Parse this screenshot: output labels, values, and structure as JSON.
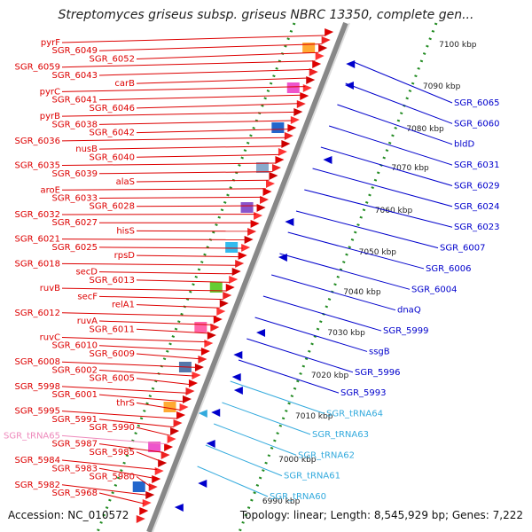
{
  "title": "Streptomyces griseus subsp. griseus NBRC 13350, complete gen...",
  "footer": {
    "accession": "Accession: NC_010572",
    "topology": "Topology: linear; Length: 8,545,929 bp; Genes: 7,222"
  },
  "colors": {
    "forward": "#dd0000",
    "reverse": "#0000cc",
    "trna": "#33aadd",
    "trna_label": "#ee88bb",
    "ruler": "#228b22"
  },
  "axis": {
    "ticks": [
      "7100 kbp",
      "7090 kbp",
      "7080 kbp",
      "7070 kbp",
      "7060 kbp",
      "7050 kbp",
      "7040 kbp",
      "7030 kbp",
      "7020 kbp",
      "7010 kbp",
      "7000 kbp",
      "6990 kbp"
    ]
  },
  "labels_left": [
    "pyrF",
    "SGR_6049",
    "SGR_6052",
    "SGR_6059",
    "SGR_6043",
    "carB",
    "pyrC",
    "SGR_6041",
    "SGR_6046",
    "pyrB",
    "SGR_6038",
    "SGR_6042",
    "SGR_6036",
    "nusB",
    "SGR_6040",
    "SGR_6035",
    "SGR_6039",
    "alaS",
    "aroE",
    "SGR_6033",
    "SGR_6028",
    "SGR_6032",
    "SGR_6027",
    "hisS",
    "SGR_6021",
    "SGR_6025",
    "rpsD",
    "SGR_6018",
    "secD",
    "SGR_6013",
    "ruvB",
    "secF",
    "relA1",
    "SGR_6012",
    "ruvA",
    "SGR_6011",
    "ruvC",
    "SGR_6010",
    "SGR_6009",
    "SGR_6008",
    "SGR_6002",
    "SGR_6005",
    "SGR_5998",
    "SGR_6001",
    "thrS",
    "SGR_5995",
    "SGR_5991",
    "SGR_5990",
    "SGR_tRNA65",
    "SGR_5987",
    "SGR_5985",
    "SGR_5984",
    "SGR_5983",
    "SGR_5980",
    "SGR_5982",
    "SGR_5968"
  ],
  "labels_right": [
    "SGR_6065",
    "SGR_6060",
    "bldD",
    "SGR_6031",
    "SGR_6029",
    "SGR_6024",
    "SGR_6023",
    "SGR_6007",
    "SGR_6006",
    "SGR_6004",
    "dnaQ",
    "SGR_5999",
    "ssgB",
    "SGR_5996",
    "SGR_5993",
    "SGR_tRNA64",
    "SGR_tRNA63",
    "SGR_tRNA62",
    "SGR_tRNA61",
    "SGR_tRNA60"
  ]
}
